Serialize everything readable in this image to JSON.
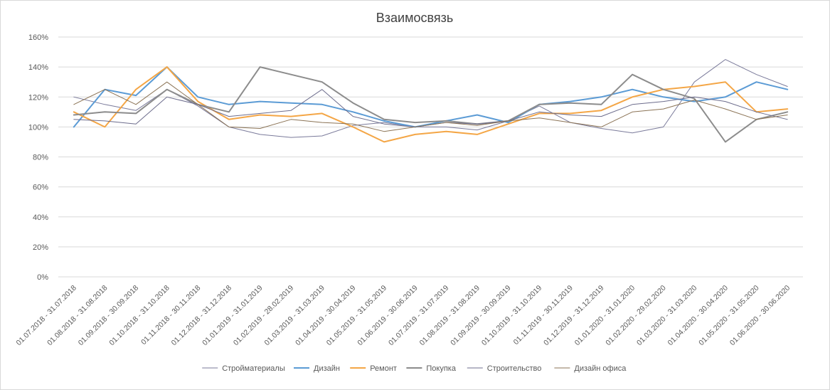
{
  "chart_data": {
    "type": "line",
    "title": "Взаимосвязь",
    "xlabel": "",
    "ylabel": "",
    "ylim": [
      0,
      160
    ],
    "yticks": [
      "0%",
      "20%",
      "40%",
      "60%",
      "80%",
      "100%",
      "120%",
      "140%",
      "160%"
    ],
    "grid": true,
    "legend_position": "bottom",
    "categories": [
      "01.07.2018 - 31.07.2018",
      "01.08.2018 - 31.08.2018",
      "01.09.2018 - 30.09.2018",
      "01.10.2018 - 31.10.2018",
      "01.11.2018 - 30.11.2018",
      "01.12.2018 - 31.12.2018",
      "01.01.2019 - 31.01.2019",
      "01.02.2019 - 28.02.2019",
      "01.03.2019 - 31.03.2019",
      "01.04.2019 - 30.04.2019",
      "01.05.2019 - 31.05.2019",
      "01.06.2019 - 30.06.2019",
      "01.07.2019 - 31.07.2019",
      "01.08.2019 - 31.08.2019",
      "01.09.2019 - 30.09.2019",
      "01.10.2019 - 31.10.2019",
      "01.11.2019 - 30.11.2019",
      "01.12.2019 - 31.12.2019",
      "01.01.2020 - 31.01.2020",
      "01.02.2020 - 29.02.2020",
      "01.03.2020 - 31.03.2020",
      "01.04.2020 - 30.04.2020",
      "01.05.2020 - 31.05.2020",
      "01.06.2020 - 30.06.2020"
    ],
    "series": [
      {
        "name": "Стройматериалы",
        "color": "#7a7a9a",
        "width": 1,
        "values": [
          120,
          115,
          111,
          125,
          114,
          100,
          95,
          93,
          94,
          101,
          103,
          100,
          100,
          98,
          104,
          114,
          103,
          99,
          96,
          100,
          130,
          145,
          135,
          127
        ]
      },
      {
        "name": "Дизайн",
        "color": "#5b9bd5",
        "width": 2,
        "values": [
          100,
          125,
          121,
          140,
          120,
          115,
          117,
          116,
          115,
          110,
          104,
          100,
          104,
          108,
          103,
          115,
          117,
          120,
          125,
          120,
          117,
          120,
          130,
          125
        ]
      },
      {
        "name": "Ремонт",
        "color": "#f4a646",
        "width": 2,
        "values": [
          110,
          100,
          125,
          140,
          117,
          105,
          108,
          107,
          109,
          100,
          90,
          95,
          97,
          95,
          102,
          109,
          109,
          111,
          120,
          125,
          127,
          130,
          110,
          112
        ]
      },
      {
        "name": "Покупка",
        "color": "#8c8c8c",
        "width": 2,
        "values": [
          108,
          110,
          109,
          125,
          115,
          110,
          140,
          135,
          130,
          116,
          105,
          103,
          104,
          102,
          104,
          115,
          116,
          115,
          135,
          125,
          119,
          90,
          105,
          110
        ]
      },
      {
        "name": "Строительство",
        "color": "#6c6c8c",
        "width": 1,
        "values": [
          105,
          104,
          102,
          120,
          115,
          107,
          109,
          111,
          125,
          107,
          102,
          100,
          103,
          102,
          104,
          110,
          108,
          107,
          115,
          117,
          120,
          117,
          110,
          105
        ]
      },
      {
        "name": "Дизайн офиса",
        "color": "#8b7355",
        "width": 1,
        "values": [
          115,
          125,
          115,
          130,
          115,
          100,
          99,
          105,
          103,
          102,
          97,
          100,
          103,
          101,
          104,
          106,
          103,
          100,
          110,
          112,
          118,
          112,
          105,
          108
        ]
      }
    ]
  }
}
